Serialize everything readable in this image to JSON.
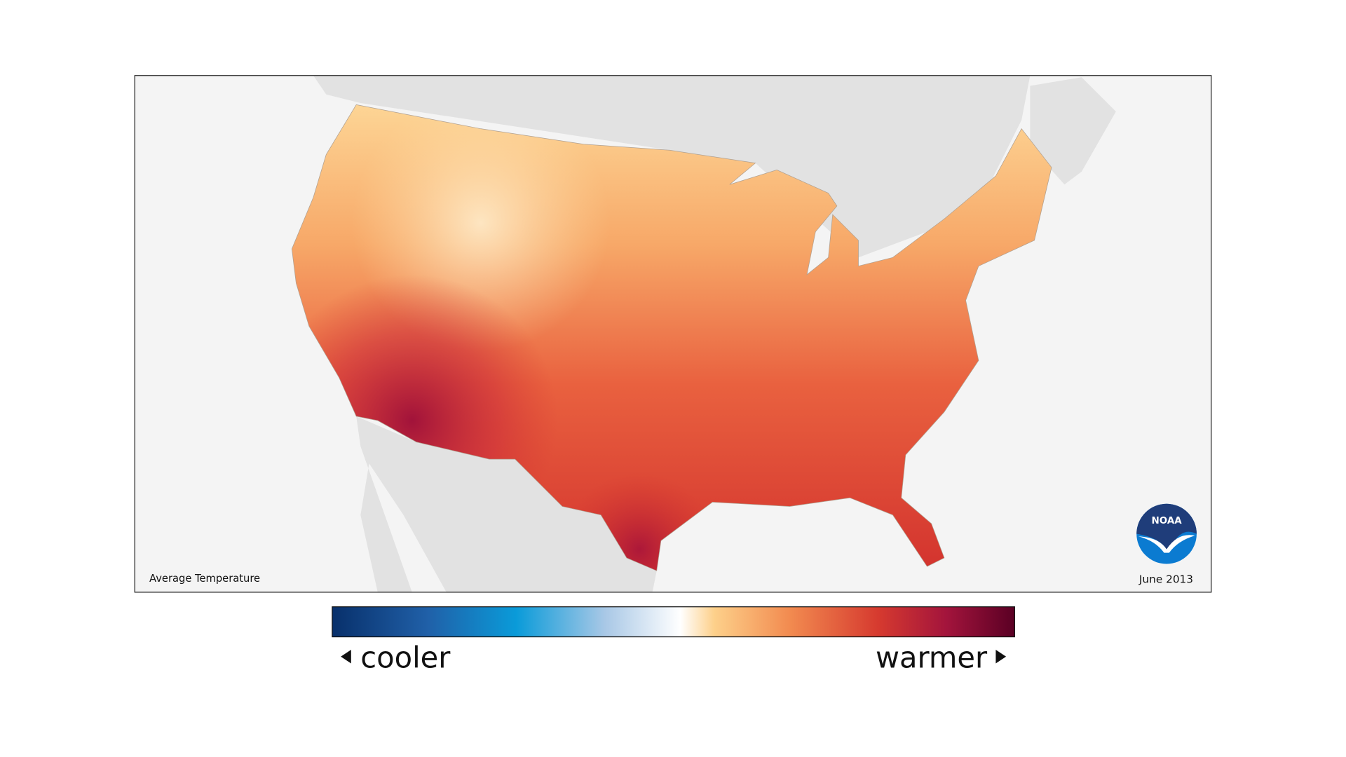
{
  "map": {
    "title": "Average Temperature",
    "date": "June 2013"
  },
  "legend": {
    "low_label": "cooler",
    "high_label": "warmer"
  },
  "logo": {
    "text": "NOAA"
  }
}
